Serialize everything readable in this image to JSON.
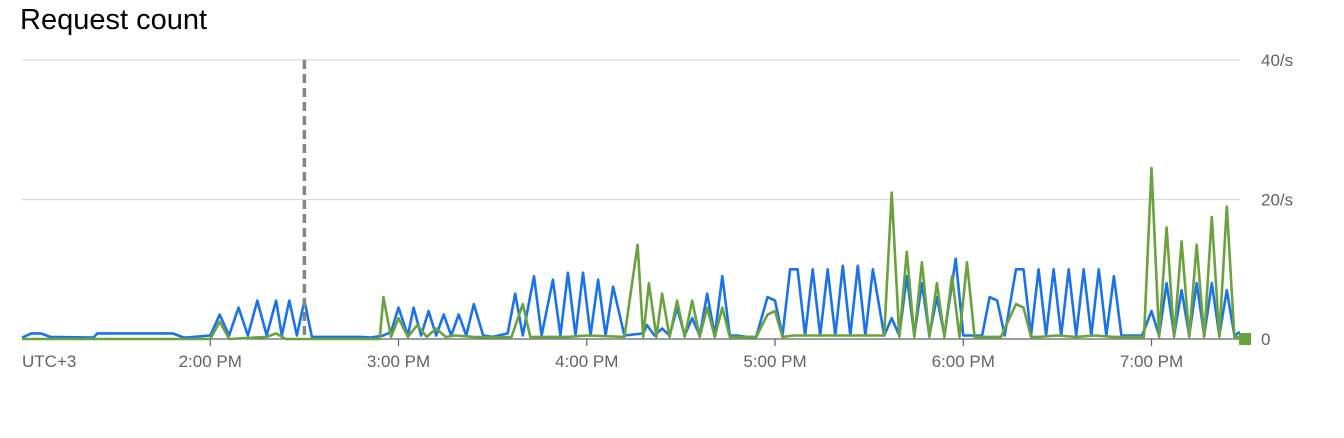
{
  "chart_title": "Request count",
  "chart_data": {
    "type": "line",
    "title": "Request count",
    "timezone_label": "UTC+3",
    "x_tick_labels": [
      "2:00 PM",
      "3:00 PM",
      "4:00 PM",
      "5:00 PM",
      "6:00 PM",
      "7:00 PM"
    ],
    "x_tick_hours": [
      14,
      15,
      16,
      17,
      18,
      19
    ],
    "xlim_hours": [
      13.0,
      19.47
    ],
    "marker_hour": 14.5,
    "y_tick_labels": [
      "40/s",
      "20/s",
      "0"
    ],
    "y_tick_values": [
      40,
      20,
      0
    ],
    "ylim": [
      0,
      40
    ],
    "grid": true,
    "legend_swatch_color": "#6aa33e",
    "series": [
      {
        "color": "#1a73e8",
        "x": [
          13.0,
          13.05,
          13.1,
          13.15,
          13.38,
          13.4,
          13.45,
          13.5,
          13.72,
          13.75,
          13.8,
          13.85,
          13.87,
          14.0,
          14.05,
          14.1,
          14.15,
          14.2,
          14.25,
          14.3,
          14.35,
          14.38,
          14.42,
          14.46,
          14.5,
          14.54,
          14.58,
          14.6,
          14.64,
          14.66,
          14.7,
          14.72,
          14.76,
          14.8,
          14.85,
          14.92,
          14.96,
          15.0,
          15.05,
          15.08,
          15.12,
          15.16,
          15.2,
          15.24,
          15.28,
          15.32,
          15.36,
          15.4,
          15.45,
          15.5,
          15.58,
          15.62,
          15.66,
          15.72,
          15.76,
          15.82,
          15.86,
          15.9,
          15.94,
          15.98,
          16.02,
          16.06,
          16.1,
          16.14,
          16.2,
          16.3,
          16.32,
          16.36,
          16.4,
          16.44,
          16.48,
          16.52,
          16.56,
          16.6,
          16.64,
          16.68,
          16.72,
          16.76,
          16.8,
          16.85,
          16.9,
          16.96,
          17.0,
          17.04,
          17.08,
          17.12,
          17.16,
          17.2,
          17.24,
          17.28,
          17.32,
          17.36,
          17.4,
          17.44,
          17.48,
          17.52,
          17.58,
          17.62,
          17.66,
          17.7,
          17.74,
          17.78,
          17.82,
          17.86,
          17.9,
          17.96,
          18.0,
          18.04,
          18.1,
          18.14,
          18.18,
          18.22,
          18.28,
          18.32,
          18.36,
          18.4,
          18.44,
          18.48,
          18.52,
          18.56,
          18.6,
          18.64,
          18.68,
          18.72,
          18.76,
          18.8,
          18.84,
          18.9,
          18.95,
          19.0,
          19.04,
          19.08,
          19.12,
          19.16,
          19.2,
          19.24,
          19.28,
          19.32,
          19.36,
          19.4,
          19.44,
          19.47
        ],
        "y": [
          0.2,
          0.8,
          0.8,
          0.3,
          0.2,
          0.8,
          0.8,
          0.8,
          0.8,
          0.8,
          0.8,
          0.3,
          0.2,
          0.5,
          3.5,
          0.5,
          4.5,
          0.5,
          5.5,
          0.5,
          5.5,
          0.5,
          5.5,
          0.5,
          5.5,
          0.3,
          0.3,
          0.3,
          0.3,
          0.3,
          0.3,
          0.3,
          0.3,
          0.3,
          0.2,
          0.5,
          1.0,
          4.5,
          0.5,
          4.5,
          0.5,
          4.0,
          0.5,
          3.5,
          0.5,
          3.5,
          0.5,
          5.0,
          0.5,
          0.3,
          0.8,
          6.5,
          0.5,
          9.0,
          0.5,
          8.5,
          0.5,
          9.5,
          0.5,
          9.5,
          0.5,
          8.5,
          0.5,
          7.5,
          0.5,
          0.8,
          2.0,
          0.5,
          1.5,
          0.5,
          4.5,
          0.5,
          3.0,
          0.5,
          6.5,
          0.5,
          9.0,
          0.5,
          0.5,
          0.3,
          0.3,
          6.0,
          5.5,
          0.5,
          10.0,
          10.0,
          0.5,
          10.0,
          0.5,
          10.0,
          0.5,
          10.5,
          0.5,
          10.5,
          0.5,
          10.0,
          0.5,
          3.0,
          0.5,
          9.0,
          0.5,
          8.0,
          0.5,
          6.0,
          0.5,
          11.5,
          0.5,
          0.5,
          0.5,
          6.0,
          5.5,
          0.5,
          10.0,
          10.0,
          0.5,
          10.0,
          0.5,
          10.0,
          0.5,
          10.0,
          0.5,
          10.0,
          0.5,
          10.0,
          0.5,
          9.0,
          0.5,
          0.5,
          0.5,
          4.0,
          0.5,
          8.0,
          0.5,
          7.0,
          0.5,
          8.0,
          0.5,
          8.0,
          0.5,
          7.0,
          0.5,
          1.0
        ]
      },
      {
        "color": "#6aa33e",
        "x": [
          13.0,
          14.0,
          14.05,
          14.1,
          14.3,
          14.35,
          14.4,
          14.6,
          14.9,
          14.92,
          14.96,
          15.0,
          15.05,
          15.1,
          15.15,
          15.2,
          15.25,
          15.3,
          15.4,
          15.5,
          15.6,
          15.66,
          15.7,
          15.8,
          15.9,
          16.0,
          16.2,
          16.27,
          16.3,
          16.33,
          16.37,
          16.4,
          16.44,
          16.48,
          16.52,
          16.56,
          16.6,
          16.64,
          16.68,
          16.72,
          16.76,
          16.8,
          16.9,
          16.96,
          17.0,
          17.04,
          17.1,
          17.2,
          17.3,
          17.4,
          17.5,
          17.58,
          17.62,
          17.66,
          17.7,
          17.74,
          17.78,
          17.82,
          17.86,
          17.9,
          17.94,
          17.98,
          18.02,
          18.06,
          18.1,
          18.2,
          18.28,
          18.32,
          18.36,
          18.4,
          18.5,
          18.6,
          18.7,
          18.8,
          18.9,
          18.96,
          19.0,
          19.04,
          19.08,
          19.12,
          19.16,
          19.2,
          19.24,
          19.28,
          19.32,
          19.36,
          19.4,
          19.44,
          19.47
        ],
        "y": [
          0.0,
          0.0,
          2.5,
          0.0,
          0.3,
          0.8,
          0.0,
          0.0,
          0.0,
          6.0,
          0.3,
          3.0,
          0.3,
          2.0,
          0.3,
          1.5,
          0.3,
          0.5,
          0.3,
          0.2,
          0.3,
          5.0,
          0.3,
          0.3,
          0.3,
          0.5,
          0.3,
          13.5,
          0.3,
          8.0,
          0.3,
          6.5,
          0.3,
          5.5,
          0.3,
          5.5,
          0.3,
          4.5,
          0.3,
          4.5,
          0.3,
          0.3,
          0.3,
          3.5,
          4.0,
          0.3,
          0.5,
          0.5,
          0.5,
          0.5,
          0.5,
          0.5,
          21.0,
          0.3,
          12.5,
          0.3,
          11.0,
          0.3,
          8.0,
          0.3,
          9.0,
          0.3,
          11.0,
          0.3,
          0.3,
          0.3,
          5.0,
          4.5,
          0.3,
          0.3,
          0.5,
          0.3,
          0.5,
          0.3,
          0.3,
          0.3,
          24.5,
          0.3,
          16.0,
          0.3,
          14.0,
          0.3,
          13.5,
          0.3,
          17.5,
          0.3,
          19.0,
          0.3,
          0.3
        ]
      }
    ]
  }
}
